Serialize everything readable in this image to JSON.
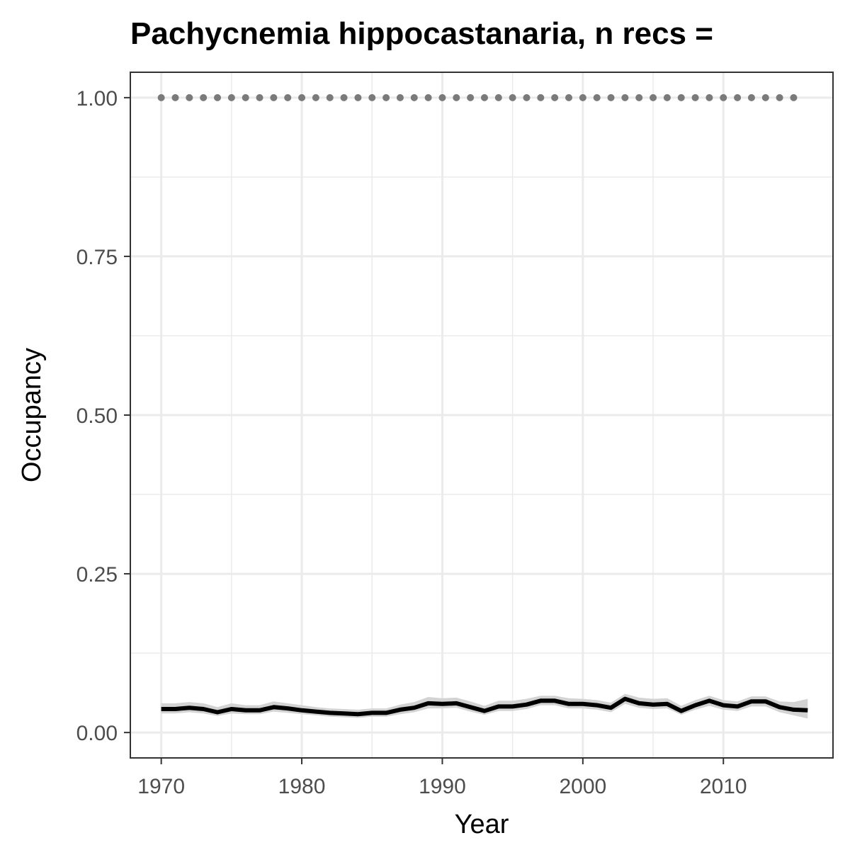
{
  "chart_data": {
    "type": "line",
    "title": "Pachycnemia hippocastanaria, n recs = ",
    "xlabel": "Year",
    "ylabel": "Occupancy",
    "xlim": [
      1967.8,
      2017.8
    ],
    "ylim": [
      -0.04,
      1.04
    ],
    "x_ticks": [
      1970,
      1980,
      1990,
      2000,
      2010
    ],
    "x_tick_labels": [
      "1970",
      "1980",
      "1990",
      "2000",
      "2010"
    ],
    "y_ticks": [
      0.0,
      0.25,
      0.5,
      0.75,
      1.0
    ],
    "y_tick_labels": [
      "0.00",
      "0.25",
      "0.50",
      "0.75",
      "1.00"
    ],
    "grid": true,
    "colors": {
      "line": "#000000",
      "ribbon": "#d3d3d3",
      "dots": "#7a7a7a",
      "grid": "#ebebeb",
      "panel_border": "#333333"
    },
    "series": [
      {
        "type": "line",
        "x": [
          1970,
          1971,
          1972,
          1973,
          1974,
          1975,
          1976,
          1977,
          1978,
          1979,
          1980,
          1981,
          1982,
          1983,
          1984,
          1985,
          1986,
          1987,
          1988,
          1989,
          1990,
          1991,
          1992,
          1993,
          1994,
          1995,
          1996,
          1997,
          1998,
          1999,
          2000,
          2001,
          2002,
          2003,
          2004,
          2005,
          2006,
          2007,
          2008,
          2009,
          2010,
          2011,
          2012,
          2013,
          2014,
          2015,
          2016
        ],
        "y": [
          0.037,
          0.037,
          0.039,
          0.037,
          0.032,
          0.037,
          0.035,
          0.035,
          0.04,
          0.038,
          0.035,
          0.033,
          0.031,
          0.03,
          0.029,
          0.031,
          0.031,
          0.036,
          0.039,
          0.046,
          0.045,
          0.046,
          0.04,
          0.034,
          0.041,
          0.041,
          0.044,
          0.05,
          0.05,
          0.045,
          0.045,
          0.043,
          0.039,
          0.053,
          0.046,
          0.044,
          0.045,
          0.034,
          0.043,
          0.05,
          0.043,
          0.041,
          0.049,
          0.049,
          0.04,
          0.036,
          0.035
        ],
        "lower": [
          0.03,
          0.03,
          0.032,
          0.03,
          0.026,
          0.03,
          0.029,
          0.029,
          0.033,
          0.031,
          0.029,
          0.027,
          0.025,
          0.024,
          0.023,
          0.025,
          0.025,
          0.029,
          0.032,
          0.038,
          0.038,
          0.039,
          0.033,
          0.028,
          0.034,
          0.034,
          0.037,
          0.043,
          0.043,
          0.038,
          0.038,
          0.036,
          0.032,
          0.045,
          0.039,
          0.037,
          0.038,
          0.028,
          0.036,
          0.042,
          0.036,
          0.034,
          0.041,
          0.041,
          0.032,
          0.027,
          0.022
        ],
        "upper": [
          0.046,
          0.046,
          0.048,
          0.046,
          0.04,
          0.046,
          0.043,
          0.043,
          0.049,
          0.046,
          0.043,
          0.04,
          0.038,
          0.037,
          0.036,
          0.038,
          0.038,
          0.044,
          0.048,
          0.056,
          0.054,
          0.055,
          0.049,
          0.042,
          0.05,
          0.05,
          0.053,
          0.058,
          0.058,
          0.054,
          0.053,
          0.051,
          0.047,
          0.061,
          0.055,
          0.053,
          0.054,
          0.042,
          0.051,
          0.058,
          0.051,
          0.049,
          0.057,
          0.057,
          0.049,
          0.048,
          0.053
        ]
      },
      {
        "type": "points",
        "x": [
          1970,
          1971,
          1972,
          1973,
          1974,
          1975,
          1976,
          1977,
          1978,
          1979,
          1980,
          1981,
          1982,
          1983,
          1984,
          1985,
          1986,
          1987,
          1988,
          1989,
          1990,
          1991,
          1992,
          1993,
          1994,
          1995,
          1996,
          1997,
          1998,
          1999,
          2000,
          2001,
          2002,
          2003,
          2004,
          2005,
          2006,
          2007,
          2008,
          2009,
          2010,
          2011,
          2012,
          2013,
          2014,
          2015
        ],
        "y": [
          1,
          1,
          1,
          1,
          1,
          1,
          1,
          1,
          1,
          1,
          1,
          1,
          1,
          1,
          1,
          1,
          1,
          1,
          1,
          1,
          1,
          1,
          1,
          1,
          1,
          1,
          1,
          1,
          1,
          1,
          1,
          1,
          1,
          1,
          1,
          1,
          1,
          1,
          1,
          1,
          1,
          1,
          1,
          1,
          1,
          1
        ]
      }
    ]
  }
}
